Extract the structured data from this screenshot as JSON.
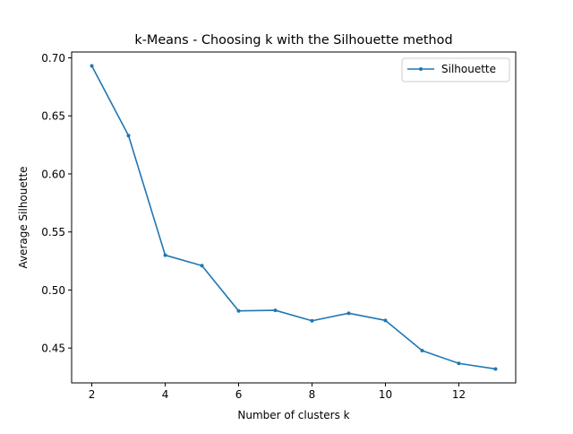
{
  "chart_data": {
    "type": "line",
    "title": "k-Means - Choosing k with the Silhouette method",
    "xlabel": "Number of clusters k",
    "ylabel": "Average Silhouette",
    "xlim": [
      1.45,
      13.55
    ],
    "ylim": [
      0.42,
      0.705
    ],
    "x_ticks": [
      2,
      4,
      6,
      8,
      10,
      12
    ],
    "y_ticks": [
      0.45,
      0.5,
      0.55,
      0.6,
      0.65,
      0.7
    ],
    "x_tick_labels": [
      "2",
      "4",
      "6",
      "8",
      "10",
      "12"
    ],
    "y_tick_labels": [
      "0.45",
      "0.50",
      "0.55",
      "0.60",
      "0.65",
      "0.70"
    ],
    "grid": false,
    "legend": {
      "position": "top-right"
    },
    "x": [
      2,
      3,
      4,
      5,
      6,
      7,
      8,
      9,
      10,
      11,
      12,
      13
    ],
    "series": [
      {
        "name": "Silhouette",
        "color": "#1f77b4",
        "marker": "dot",
        "values": [
          0.693,
          0.633,
          0.53,
          0.521,
          0.482,
          0.4825,
          0.4735,
          0.48,
          0.4738,
          0.4478,
          0.4368,
          0.432
        ]
      }
    ]
  }
}
